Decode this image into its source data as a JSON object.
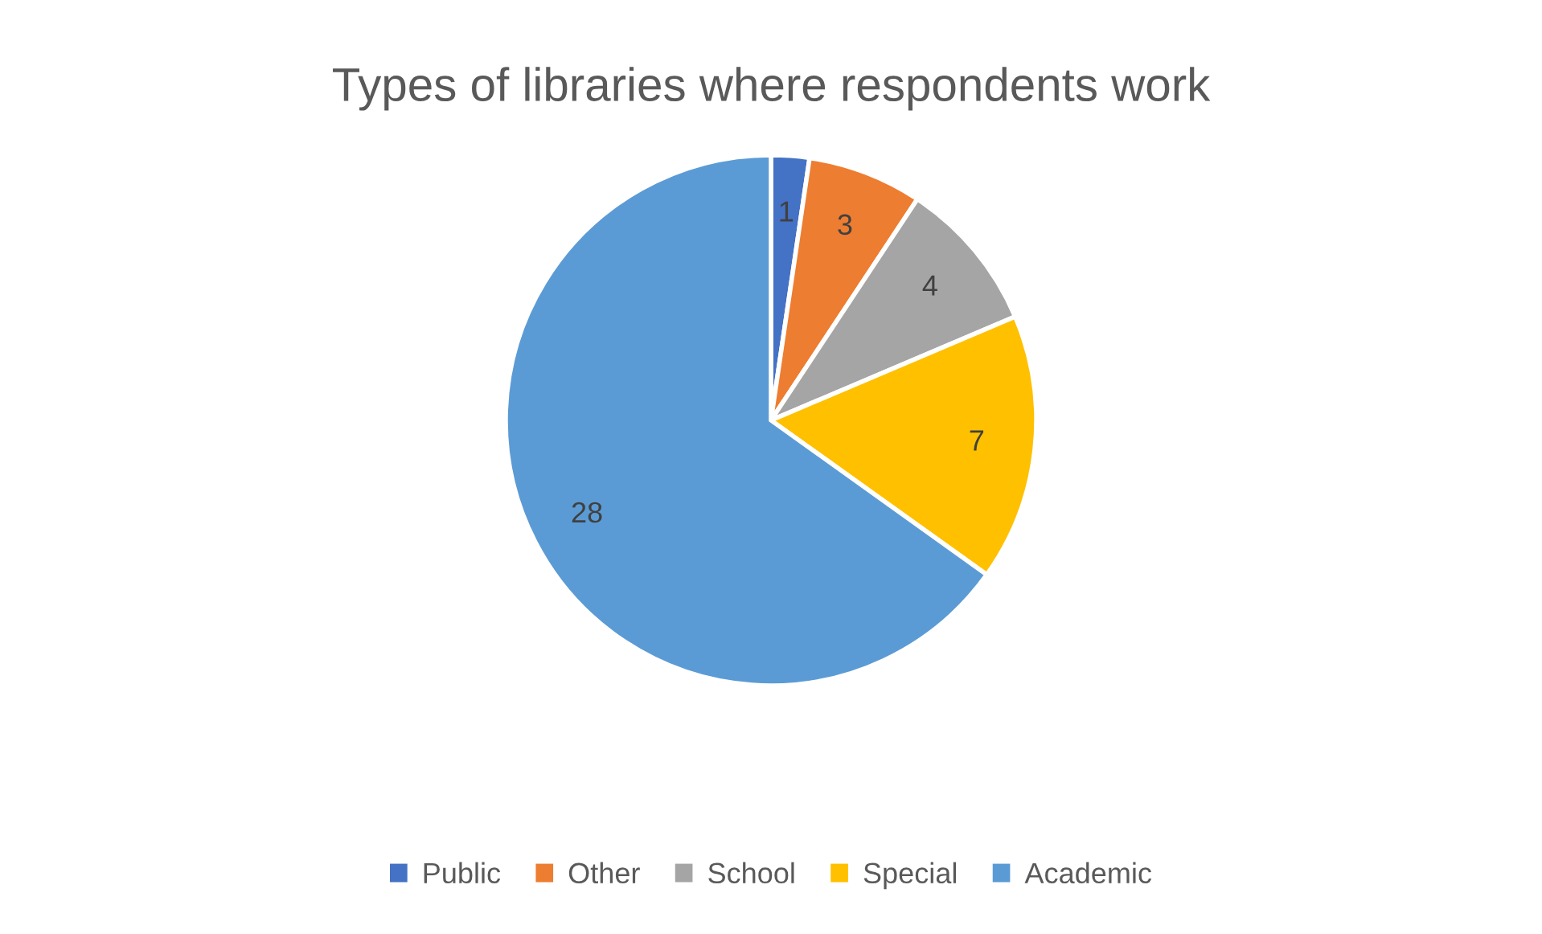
{
  "chart_data": {
    "type": "pie",
    "title": "Types of libraries where respondents work",
    "categories": [
      "Public",
      "Other",
      "School",
      "Special",
      "Academic"
    ],
    "values": [
      1,
      3,
      4,
      7,
      28
    ],
    "colors": [
      "#4472c4",
      "#ed7d31",
      "#a5a5a5",
      "#ffc000",
      "#5b9bd5"
    ],
    "data_labels": true,
    "legend": "bottom"
  }
}
